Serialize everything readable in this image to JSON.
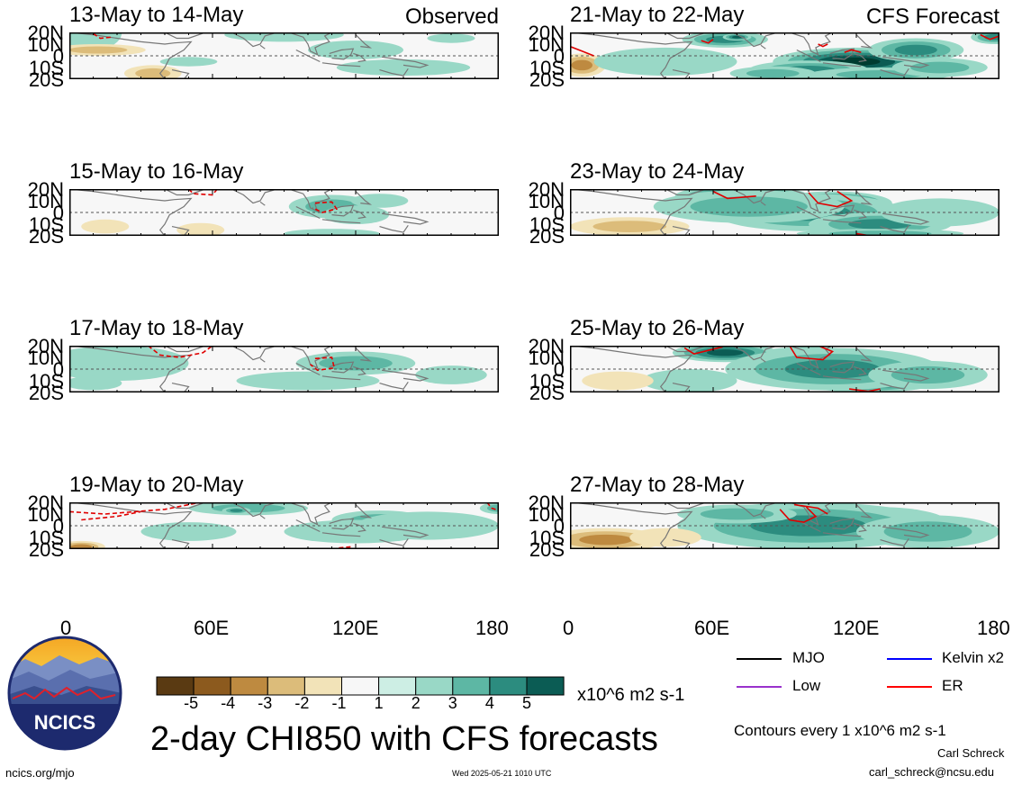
{
  "chart_data": {
    "type": "heatmap",
    "title": "2-day CHI850 with CFS forecasts",
    "source": "ncics.org/mjo",
    "timestamp": "Wed 2025-05-21 1010 UTC",
    "labels": {
      "observed": "Observed",
      "forecast": "CFS Forecast"
    },
    "xticks": [
      "0",
      "60E",
      "120E",
      "180"
    ],
    "yticks": [
      "20N",
      "10N",
      "0",
      "10S",
      "20S"
    ],
    "xlim": [
      0,
      180
    ],
    "ylim": [
      -20,
      20
    ],
    "colorbar": {
      "ticks": [
        "-5",
        "-4",
        "-3",
        "-2",
        "-1",
        "1",
        "2",
        "3",
        "4",
        "5"
      ],
      "unit": "x10^6 m2 s-1",
      "colors": [
        "#5a3a12",
        "#8c5a1e",
        "#be8a40",
        "#dcbc7a",
        "#f2e3b8",
        "#f7f7f7",
        "#cdeee4",
        "#99d8c6",
        "#5db7a4",
        "#2c8c7f",
        "#0b5c54",
        "#003c30"
      ]
    },
    "legend": [
      {
        "label": "MJO",
        "color": "#000000"
      },
      {
        "label": "Kelvin x2",
        "color": "#0000ff"
      },
      {
        "label": "Low",
        "color": "#9932cc"
      },
      {
        "label": "ER",
        "color": "#ff0000"
      }
    ],
    "contours_note": "Contours every 1 x10^6 m2 s-1",
    "author": "Carl Schreck",
    "email": "carl_schreck@ncsu.edu",
    "logo_text": "NCICS",
    "panels": [
      {
        "title": "13-May to 14-May",
        "kind": "observed",
        "cells": [
          [
            8,
            20,
            14,
            16,
            1
          ],
          [
            12,
            5,
            20,
            5,
            -2
          ],
          [
            35,
            -15,
            12,
            7,
            -2
          ],
          [
            90,
            18,
            25,
            6,
            1
          ],
          [
            120,
            5,
            20,
            8,
            1
          ],
          [
            140,
            -10,
            28,
            7,
            1
          ],
          [
            160,
            15,
            10,
            4,
            1
          ],
          [
            50,
            -5,
            12,
            4,
            1
          ]
        ],
        "er": [
          [
            [
              10,
              19
            ],
            [
              13,
              15
            ],
            [
              18,
              16
            ]
          ]
        ]
      },
      {
        "title": "21-May to 22-May",
        "kind": "forecast",
        "cells": [
          [
            120,
            -5,
            35,
            12,
            5
          ],
          [
            100,
            -12,
            25,
            8,
            3
          ],
          [
            85,
            -15,
            18,
            6,
            2
          ],
          [
            145,
            5,
            20,
            10,
            3
          ],
          [
            65,
            14,
            18,
            7,
            3
          ],
          [
            70,
            16,
            6,
            3,
            4
          ],
          [
            178,
            16,
            10,
            6,
            3
          ],
          [
            5,
            -8,
            10,
            10,
            -3
          ],
          [
            40,
            -5,
            30,
            12,
            1
          ],
          [
            130,
            -16,
            30,
            6,
            2
          ],
          [
            155,
            -10,
            20,
            8,
            2
          ]
        ],
        "er": [
          [
            [
              55,
              13
            ],
            [
              58,
              11
            ],
            [
              60,
              14
            ]
          ],
          [
            [
              104,
              10
            ],
            [
              106,
              8
            ],
            [
              108,
              10
            ]
          ],
          [
            [
              115,
              3
            ],
            [
              118,
              5
            ],
            [
              122,
              3
            ]
          ],
          [
            [
              0,
              8
            ],
            [
              5,
              4
            ],
            [
              10,
              0
            ]
          ],
          [
            [
              172,
              18
            ],
            [
              176,
              14
            ],
            [
              180,
              17
            ]
          ]
        ]
      },
      {
        "title": "15-May to 16-May",
        "kind": "observed",
        "cells": [
          [
            110,
            5,
            18,
            10,
            2
          ],
          [
            120,
            -2,
            14,
            8,
            1
          ],
          [
            130,
            10,
            12,
            6,
            1
          ],
          [
            55,
            -15,
            10,
            6,
            -1
          ],
          [
            15,
            -12,
            10,
            6,
            -1
          ],
          [
            110,
            -18,
            20,
            4,
            1
          ]
        ],
        "er": [
          [
            [
              50,
              20
            ],
            [
              52,
              16
            ],
            [
              60,
              15
            ],
            [
              62,
              20
            ]
          ],
          [
            [
              103,
              8
            ],
            [
              110,
              9
            ],
            [
              112,
              3
            ],
            [
              106,
              0
            ],
            [
              102,
              4
            ]
          ]
        ]
      },
      {
        "title": "23-May to 24-May",
        "kind": "forecast",
        "cells": [
          [
            72,
            14,
            28,
            9,
            5
          ],
          [
            110,
            8,
            25,
            10,
            5
          ],
          [
            100,
            0,
            40,
            16,
            3
          ],
          [
            130,
            -10,
            30,
            10,
            3
          ],
          [
            75,
            5,
            40,
            14,
            2
          ],
          [
            155,
            0,
            25,
            12,
            1
          ],
          [
            25,
            -12,
            25,
            8,
            -2
          ],
          [
            130,
            -18,
            35,
            4,
            2
          ]
        ],
        "er": [
          [
            [
              100,
              17
            ],
            [
              104,
              8
            ],
            [
              112,
              5
            ],
            [
              118,
              10
            ],
            [
              112,
              18
            ]
          ],
          [
            [
              60,
              18
            ],
            [
              66,
              12
            ],
            [
              78,
              14
            ]
          ],
          [
            [
              120,
              -18
            ],
            [
              126,
              -20
            ]
          ]
        ]
      },
      {
        "title": "17-May to 18-May",
        "kind": "observed",
        "cells": [
          [
            120,
            5,
            25,
            10,
            2
          ],
          [
            100,
            -10,
            30,
            8,
            1
          ],
          [
            20,
            5,
            30,
            15,
            1
          ],
          [
            160,
            -5,
            15,
            8,
            1
          ],
          [
            10,
            -12,
            12,
            6,
            1
          ]
        ],
        "er": [
          [
            [
              33,
              20
            ],
            [
              38,
              12
            ],
            [
              46,
              10
            ],
            [
              56,
              14
            ],
            [
              60,
              20
            ]
          ],
          [
            [
              103,
              9
            ],
            [
              110,
              10
            ],
            [
              111,
              1
            ],
            [
              104,
              -1
            ],
            [
              101,
              4
            ]
          ]
        ]
      },
      {
        "title": "25-May to 26-May",
        "kind": "forecast",
        "cells": [
          [
            100,
            5,
            30,
            14,
            5
          ],
          [
            125,
            -10,
            30,
            10,
            5
          ],
          [
            65,
            14,
            22,
            8,
            4
          ],
          [
            110,
            0,
            45,
            18,
            3
          ],
          [
            150,
            -5,
            25,
            12,
            2
          ],
          [
            50,
            -10,
            20,
            10,
            1
          ],
          [
            20,
            -10,
            15,
            8,
            -1
          ]
        ],
        "er": [
          [
            [
              48,
              18
            ],
            [
              52,
              13
            ],
            [
              58,
              16
            ],
            [
              64,
              19
            ]
          ],
          [
            [
              92,
              20
            ],
            [
              95,
              10
            ],
            [
              106,
              8
            ],
            [
              110,
              15
            ],
            [
              104,
              20
            ]
          ],
          [
            [
              117,
              -17
            ],
            [
              125,
              -19
            ],
            [
              130,
              -17
            ]
          ]
        ]
      },
      {
        "title": "19-May to 20-May",
        "kind": "observed",
        "cells": [
          [
            75,
            15,
            25,
            6,
            2
          ],
          [
            70,
            13,
            6,
            3,
            3
          ],
          [
            130,
            5,
            20,
            8,
            2
          ],
          [
            150,
            0,
            30,
            12,
            1
          ],
          [
            120,
            -5,
            30,
            10,
            1
          ],
          [
            180,
            15,
            8,
            5,
            2
          ],
          [
            5,
            -18,
            10,
            5,
            -3
          ],
          [
            50,
            -5,
            20,
            8,
            1
          ]
        ],
        "er": [
          [
            [
              0,
              12
            ],
            [
              15,
              10
            ],
            [
              40,
              14
            ],
            [
              55,
              20
            ]
          ],
          [
            [
              5,
              5
            ],
            [
              20,
              8
            ],
            [
              30,
              12
            ]
          ],
          [
            [
              113,
              -19
            ],
            [
              118,
              -18
            ]
          ],
          [
            [
              175,
              20
            ],
            [
              177,
              15
            ],
            [
              180,
              13
            ]
          ]
        ]
      },
      {
        "title": "27-May to 28-May",
        "kind": "forecast",
        "cells": [
          [
            100,
            8,
            30,
            12,
            5
          ],
          [
            130,
            0,
            30,
            16,
            5
          ],
          [
            100,
            0,
            55,
            20,
            3
          ],
          [
            150,
            -5,
            30,
            14,
            2
          ],
          [
            70,
            10,
            25,
            8,
            2
          ],
          [
            15,
            -12,
            25,
            10,
            -3
          ],
          [
            40,
            -10,
            15,
            8,
            -1
          ]
        ],
        "er": [
          [
            [
              88,
              14
            ],
            [
              92,
              5
            ],
            [
              98,
              3
            ],
            [
              103,
              8
            ],
            [
              99,
              16
            ]
          ],
          [
            [
              94,
              18
            ],
            [
              104,
              15
            ],
            [
              108,
              10
            ]
          ]
        ]
      }
    ]
  }
}
